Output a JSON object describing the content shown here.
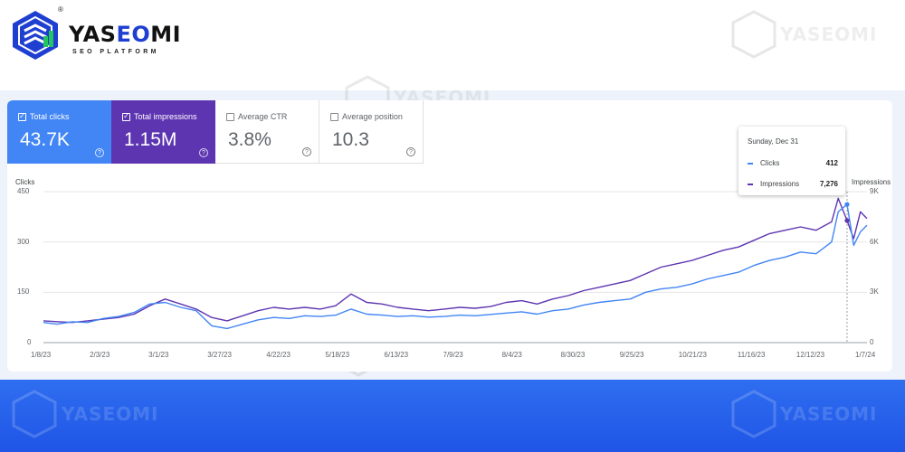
{
  "brand": {
    "name_part1": "YAS",
    "name_part2": "EO",
    "name_part3": "MI",
    "tagline": "SEO PLATFORM",
    "registered": "®",
    "watermark": "YASEOMI"
  },
  "colors": {
    "clicks": "#4285f4",
    "impressions": "#5e35b1",
    "page_band": "#2f6ef0"
  },
  "metrics": [
    {
      "label": "Total clicks",
      "value": "43.7K",
      "checked": true
    },
    {
      "label": "Total impressions",
      "value": "1.15M",
      "checked": true
    },
    {
      "label": "Average CTR",
      "value": "3.8%",
      "checked": false
    },
    {
      "label": "Average position",
      "value": "10.3",
      "checked": false
    }
  ],
  "help_glyph": "?",
  "check_glyph": "✓",
  "tooltip": {
    "date": "Sunday, Dec 31",
    "rows": [
      {
        "name": "Clicks",
        "value": "412"
      },
      {
        "name": "Impressions",
        "value": "7,276"
      }
    ]
  },
  "chart_data": {
    "type": "line",
    "left_axis": {
      "title": "Clicks",
      "ticks": [
        "450",
        "300",
        "150",
        "0"
      ],
      "range": [
        0,
        450
      ]
    },
    "right_axis": {
      "title": "Impressions",
      "ticks": [
        "9K",
        "6K",
        "3K",
        "0"
      ],
      "range": [
        0,
        9000
      ]
    },
    "x_ticks": [
      "1/8/23",
      "2/3/23",
      "3/1/23",
      "3/27/23",
      "4/22/23",
      "5/18/23",
      "6/13/23",
      "7/9/23",
      "8/4/23",
      "8/30/23",
      "9/25/23",
      "10/21/23",
      "11/16/23",
      "12/12/23",
      "1/7/24"
    ],
    "x_range": [
      "2023-01-02",
      "2024-01-09"
    ],
    "grid": true,
    "legend": "none",
    "highlight": {
      "date": "2023-12-31",
      "clicks": 412,
      "impressions": 7276
    },
    "series": [
      {
        "name": "Clicks",
        "axis": "left",
        "points": [
          [
            "2023-01-02",
            60
          ],
          [
            "2023-01-08",
            55
          ],
          [
            "2023-01-15",
            62
          ],
          [
            "2023-01-22",
            60
          ],
          [
            "2023-01-29",
            72
          ],
          [
            "2023-02-05",
            78
          ],
          [
            "2023-02-12",
            90
          ],
          [
            "2023-02-19",
            115
          ],
          [
            "2023-02-26",
            120
          ],
          [
            "2023-03-05",
            105
          ],
          [
            "2023-03-12",
            95
          ],
          [
            "2023-03-19",
            50
          ],
          [
            "2023-03-26",
            42
          ],
          [
            "2023-04-02",
            55
          ],
          [
            "2023-04-09",
            68
          ],
          [
            "2023-04-16",
            75
          ],
          [
            "2023-04-23",
            72
          ],
          [
            "2023-04-30",
            80
          ],
          [
            "2023-05-07",
            78
          ],
          [
            "2023-05-14",
            82
          ],
          [
            "2023-05-21",
            100
          ],
          [
            "2023-05-28",
            85
          ],
          [
            "2023-06-04",
            82
          ],
          [
            "2023-06-11",
            78
          ],
          [
            "2023-06-18",
            80
          ],
          [
            "2023-06-25",
            76
          ],
          [
            "2023-07-02",
            78
          ],
          [
            "2023-07-09",
            82
          ],
          [
            "2023-07-16",
            80
          ],
          [
            "2023-07-23",
            84
          ],
          [
            "2023-07-30",
            88
          ],
          [
            "2023-08-06",
            92
          ],
          [
            "2023-08-13",
            85
          ],
          [
            "2023-08-20",
            95
          ],
          [
            "2023-08-27",
            100
          ],
          [
            "2023-09-03",
            112
          ],
          [
            "2023-09-10",
            120
          ],
          [
            "2023-09-17",
            125
          ],
          [
            "2023-09-24",
            130
          ],
          [
            "2023-10-01",
            150
          ],
          [
            "2023-10-08",
            160
          ],
          [
            "2023-10-15",
            165
          ],
          [
            "2023-10-22",
            175
          ],
          [
            "2023-10-29",
            190
          ],
          [
            "2023-11-05",
            200
          ],
          [
            "2023-11-12",
            210
          ],
          [
            "2023-11-19",
            230
          ],
          [
            "2023-11-26",
            245
          ],
          [
            "2023-12-03",
            255
          ],
          [
            "2023-12-10",
            270
          ],
          [
            "2023-12-17",
            265
          ],
          [
            "2023-12-24",
            300
          ],
          [
            "2023-12-27",
            390
          ],
          [
            "2023-12-31",
            412
          ],
          [
            "2024-01-03",
            290
          ],
          [
            "2024-01-06",
            330
          ],
          [
            "2024-01-09",
            350
          ]
        ]
      },
      {
        "name": "Impressions",
        "axis": "right",
        "points": [
          [
            "2023-01-02",
            1300
          ],
          [
            "2023-01-08",
            1250
          ],
          [
            "2023-01-15",
            1200
          ],
          [
            "2023-01-22",
            1300
          ],
          [
            "2023-01-29",
            1400
          ],
          [
            "2023-02-05",
            1500
          ],
          [
            "2023-02-12",
            1700
          ],
          [
            "2023-02-19",
            2200
          ],
          [
            "2023-02-26",
            2600
          ],
          [
            "2023-03-05",
            2300
          ],
          [
            "2023-03-12",
            2000
          ],
          [
            "2023-03-19",
            1500
          ],
          [
            "2023-03-26",
            1300
          ],
          [
            "2023-04-02",
            1600
          ],
          [
            "2023-04-09",
            1900
          ],
          [
            "2023-04-16",
            2100
          ],
          [
            "2023-04-23",
            2000
          ],
          [
            "2023-04-30",
            2100
          ],
          [
            "2023-05-07",
            2000
          ],
          [
            "2023-05-14",
            2200
          ],
          [
            "2023-05-21",
            2900
          ],
          [
            "2023-05-28",
            2400
          ],
          [
            "2023-06-04",
            2300
          ],
          [
            "2023-06-11",
            2100
          ],
          [
            "2023-06-18",
            2000
          ],
          [
            "2023-06-25",
            1900
          ],
          [
            "2023-07-02",
            2000
          ],
          [
            "2023-07-09",
            2100
          ],
          [
            "2023-07-16",
            2050
          ],
          [
            "2023-07-23",
            2150
          ],
          [
            "2023-07-30",
            2400
          ],
          [
            "2023-08-06",
            2500
          ],
          [
            "2023-08-13",
            2300
          ],
          [
            "2023-08-20",
            2600
          ],
          [
            "2023-08-27",
            2800
          ],
          [
            "2023-09-03",
            3100
          ],
          [
            "2023-09-10",
            3300
          ],
          [
            "2023-09-17",
            3500
          ],
          [
            "2023-09-24",
            3700
          ],
          [
            "2023-10-01",
            4100
          ],
          [
            "2023-10-08",
            4500
          ],
          [
            "2023-10-15",
            4700
          ],
          [
            "2023-10-22",
            4900
          ],
          [
            "2023-10-29",
            5200
          ],
          [
            "2023-11-05",
            5500
          ],
          [
            "2023-11-12",
            5700
          ],
          [
            "2023-11-19",
            6100
          ],
          [
            "2023-11-26",
            6500
          ],
          [
            "2023-12-03",
            6700
          ],
          [
            "2023-12-10",
            6900
          ],
          [
            "2023-12-17",
            6700
          ],
          [
            "2023-12-24",
            7200
          ],
          [
            "2023-12-27",
            8600
          ],
          [
            "2023-12-31",
            7276
          ],
          [
            "2024-01-03",
            6200
          ],
          [
            "2024-01-06",
            7800
          ],
          [
            "2024-01-09",
            7400
          ]
        ]
      }
    ]
  }
}
